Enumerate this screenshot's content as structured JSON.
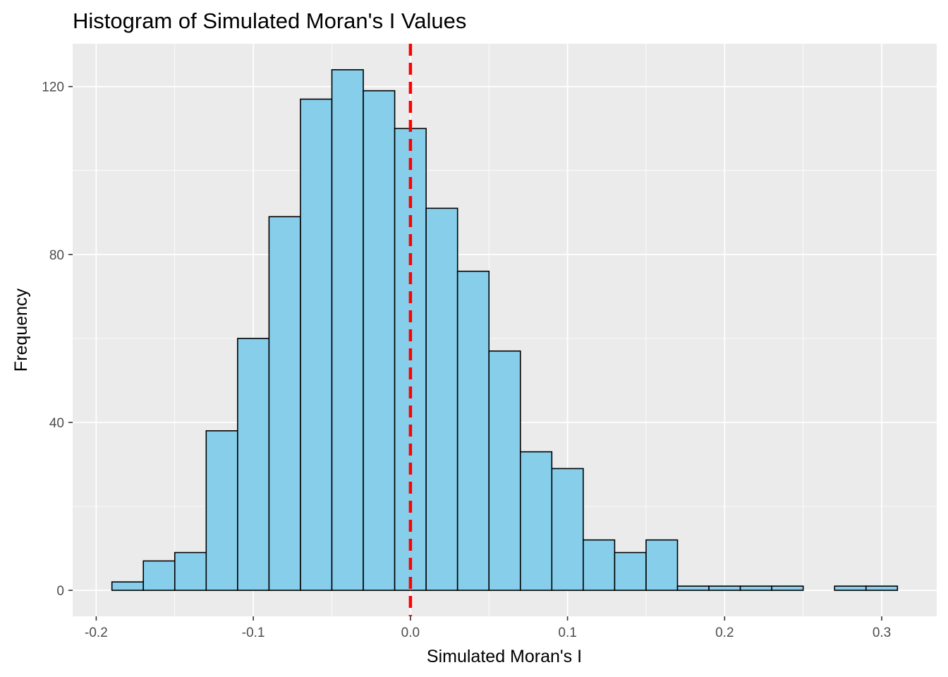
{
  "chart_data": {
    "type": "bar",
    "title": "Histogram of Simulated Moran's I Values",
    "xlabel": "Simulated Moran's I",
    "ylabel": "Frequency",
    "bin_width": 0.02,
    "bins": [
      {
        "x0": -0.19,
        "x1": -0.17,
        "count": 2
      },
      {
        "x0": -0.17,
        "x1": -0.15,
        "count": 7
      },
      {
        "x0": -0.15,
        "x1": -0.13,
        "count": 9
      },
      {
        "x0": -0.13,
        "x1": -0.11,
        "count": 38
      },
      {
        "x0": -0.11,
        "x1": -0.09,
        "count": 60
      },
      {
        "x0": -0.09,
        "x1": -0.07,
        "count": 89
      },
      {
        "x0": -0.07,
        "x1": -0.05,
        "count": 117
      },
      {
        "x0": -0.05,
        "x1": -0.03,
        "count": 124
      },
      {
        "x0": -0.03,
        "x1": -0.01,
        "count": 119
      },
      {
        "x0": -0.01,
        "x1": 0.01,
        "count": 110
      },
      {
        "x0": 0.01,
        "x1": 0.03,
        "count": 91
      },
      {
        "x0": 0.03,
        "x1": 0.05,
        "count": 76
      },
      {
        "x0": 0.05,
        "x1": 0.07,
        "count": 57
      },
      {
        "x0": 0.07,
        "x1": 0.09,
        "count": 33
      },
      {
        "x0": 0.09,
        "x1": 0.11,
        "count": 29
      },
      {
        "x0": 0.11,
        "x1": 0.13,
        "count": 12
      },
      {
        "x0": 0.13,
        "x1": 0.15,
        "count": 9
      },
      {
        "x0": 0.15,
        "x1": 0.17,
        "count": 12
      },
      {
        "x0": 0.17,
        "x1": 0.19,
        "count": 1
      },
      {
        "x0": 0.19,
        "x1": 0.21,
        "count": 1
      },
      {
        "x0": 0.21,
        "x1": 0.23,
        "count": 1
      },
      {
        "x0": 0.23,
        "x1": 0.25,
        "count": 1
      },
      {
        "x0": 0.25,
        "x1": 0.27,
        "count": 0
      },
      {
        "x0": 0.27,
        "x1": 0.29,
        "count": 1
      },
      {
        "x0": 0.29,
        "x1": 0.31,
        "count": 1
      }
    ],
    "xlim": [
      -0.215,
      0.335
    ],
    "ylim": [
      -6.2,
      130.2
    ],
    "x_ticks": [
      -0.2,
      -0.1,
      0.0,
      0.1,
      0.2,
      0.3
    ],
    "x_tick_labels": [
      "-0.2",
      "-0.1",
      "0.0",
      "0.1",
      "0.2",
      "0.3"
    ],
    "y_ticks": [
      0,
      40,
      80,
      120
    ],
    "y_tick_labels": [
      "0",
      "40",
      "80",
      "120"
    ],
    "reference_line": {
      "x": 0.0,
      "style": "dashed",
      "color": "#ff0000"
    },
    "grid": true,
    "legend": "none",
    "colors": {
      "bar_fill": "#87ceeb",
      "bar_border": "#000000",
      "panel_background": "#ebebeb",
      "grid_line": "#ffffff"
    }
  }
}
